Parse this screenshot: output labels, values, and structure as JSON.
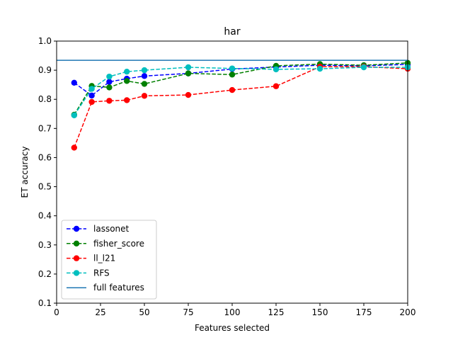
{
  "chart_data": {
    "type": "line",
    "title": "har",
    "xlabel": "Features selected",
    "ylabel": "ET accuracy",
    "xlim": [
      0,
      200
    ],
    "ylim": [
      0.1,
      1.0
    ],
    "xticks": [
      0,
      25,
      50,
      75,
      100,
      125,
      150,
      175,
      200
    ],
    "yticks": [
      0.1,
      0.2,
      0.3,
      0.4,
      0.5,
      0.6,
      0.7,
      0.8,
      0.9,
      1.0
    ],
    "grid": false,
    "legend_position": "lower-left",
    "series": [
      {
        "name": "lassonet",
        "color": "#0000ff",
        "style": "dashed-marker",
        "x": [
          10,
          20,
          30,
          40,
          50,
          75,
          100,
          125,
          150,
          175,
          200
        ],
        "y": [
          0.857,
          0.813,
          0.86,
          0.871,
          0.88,
          0.889,
          0.904,
          0.911,
          0.917,
          0.915,
          0.92
        ]
      },
      {
        "name": "fisher_score",
        "color": "#008000",
        "style": "dashed-marker",
        "x": [
          10,
          20,
          30,
          40,
          50,
          75,
          100,
          125,
          150,
          175,
          200
        ],
        "y": [
          0.747,
          0.846,
          0.841,
          0.863,
          0.853,
          0.889,
          0.885,
          0.915,
          0.921,
          0.917,
          0.925
        ]
      },
      {
        "name": "ll_l21",
        "color": "#ff0000",
        "style": "dashed-marker",
        "x": [
          10,
          20,
          30,
          40,
          50,
          75,
          100,
          125,
          150,
          175,
          200
        ],
        "y": [
          0.634,
          0.791,
          0.795,
          0.797,
          0.812,
          0.815,
          0.832,
          0.845,
          0.912,
          0.912,
          0.905
        ]
      },
      {
        "name": "RFS",
        "color": "#00bfbf",
        "style": "dashed-marker",
        "x": [
          10,
          20,
          30,
          40,
          50,
          75,
          100,
          125,
          150,
          175,
          200
        ],
        "y": [
          0.745,
          0.836,
          0.878,
          0.895,
          0.9,
          0.91,
          0.906,
          0.903,
          0.905,
          0.91,
          0.91
        ]
      },
      {
        "name": "full features",
        "color": "#1f77b4",
        "style": "solid",
        "hline": 0.934
      }
    ]
  }
}
